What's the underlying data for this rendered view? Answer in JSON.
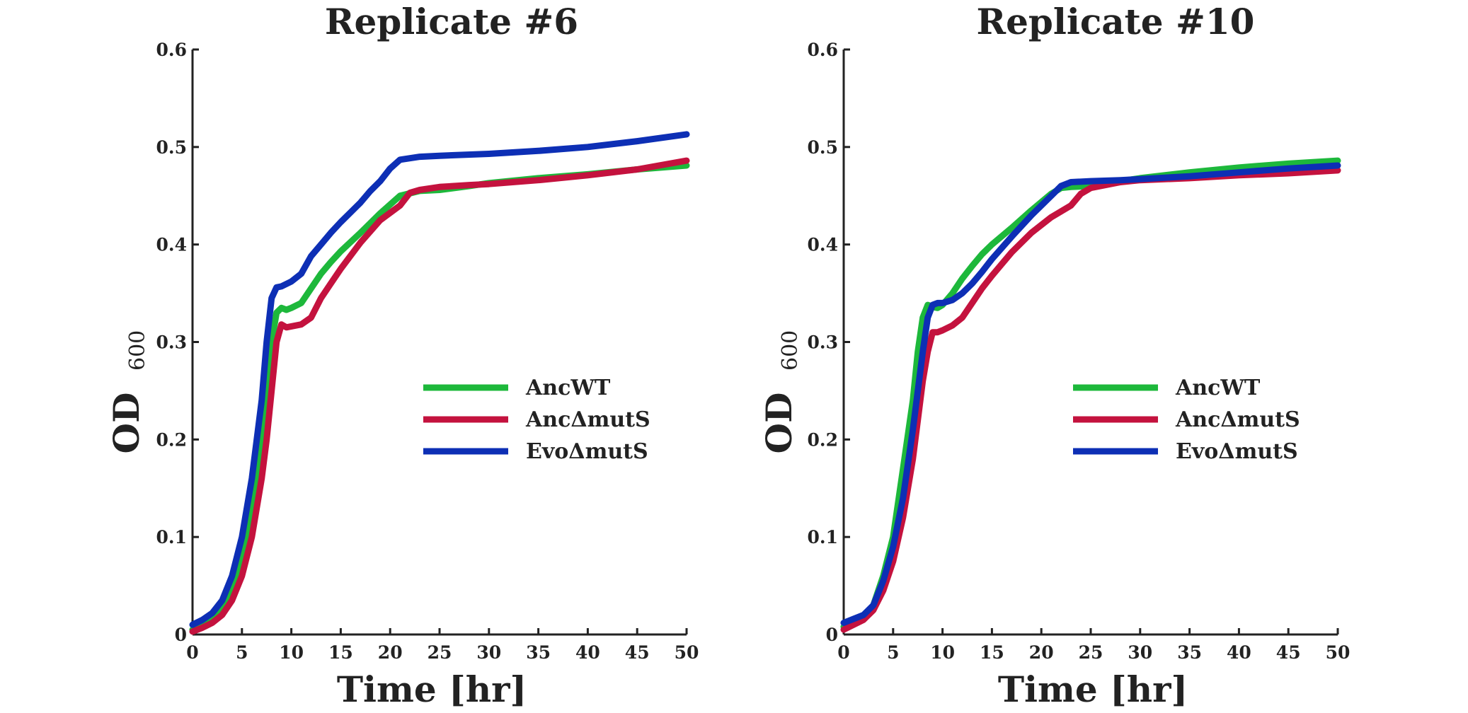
{
  "chart_data": [
    {
      "type": "line",
      "title": "Replicate #6",
      "xlabel": "Time [hr]",
      "ylabel": "OD",
      "ylabel_sub": "600",
      "xlim": [
        0,
        50
      ],
      "ylim": [
        0,
        0.6
      ],
      "xticks": [
        "0",
        "5",
        "10",
        "15",
        "20",
        "25",
        "30",
        "35",
        "40",
        "45",
        "50"
      ],
      "yticks": [
        "0",
        "0.1",
        "0.2",
        "0.3",
        "0.4",
        "0.5",
        "0.6"
      ],
      "grid": false,
      "legend_position": "right-middle",
      "series": [
        {
          "name": "AncWT",
          "color": "#1db83b",
          "x": [
            0,
            1,
            2,
            3,
            4,
            5,
            6,
            7,
            7.5,
            8,
            8.5,
            9,
            9.5,
            10,
            11,
            12,
            13,
            14,
            15,
            17,
            19,
            21,
            23,
            25,
            28,
            30,
            35,
            40,
            45,
            50
          ],
          "y": [
            0.005,
            0.01,
            0.015,
            0.025,
            0.045,
            0.08,
            0.13,
            0.2,
            0.25,
            0.3,
            0.33,
            0.335,
            0.333,
            0.335,
            0.34,
            0.355,
            0.37,
            0.382,
            0.393,
            0.412,
            0.432,
            0.45,
            0.455,
            0.456,
            0.46,
            0.463,
            0.468,
            0.472,
            0.477,
            0.481
          ]
        },
        {
          "name": "AncΔmutS",
          "color": "#c4123e",
          "x": [
            0,
            1,
            2,
            3,
            4,
            5,
            6,
            7,
            7.5,
            8,
            8.5,
            9,
            9.5,
            10,
            11,
            12,
            13,
            14,
            15,
            17,
            19,
            21,
            22,
            23,
            25,
            28,
            30,
            35,
            40,
            45,
            50
          ],
          "y": [
            0.003,
            0.007,
            0.012,
            0.02,
            0.035,
            0.06,
            0.1,
            0.16,
            0.2,
            0.25,
            0.3,
            0.318,
            0.315,
            0.316,
            0.318,
            0.325,
            0.345,
            0.36,
            0.375,
            0.402,
            0.425,
            0.44,
            0.453,
            0.456,
            0.459,
            0.461,
            0.462,
            0.466,
            0.471,
            0.477,
            0.486
          ]
        },
        {
          "name": "EvoΔmutS",
          "color": "#0d2fb5",
          "x": [
            0,
            1,
            2,
            3,
            4,
            5,
            6,
            7,
            7.5,
            8,
            8.5,
            9,
            10,
            11,
            12,
            13,
            14,
            15,
            16,
            17,
            18,
            19,
            20,
            21,
            23,
            25,
            30,
            35,
            40,
            45,
            50
          ],
          "y": [
            0.01,
            0.015,
            0.022,
            0.035,
            0.06,
            0.1,
            0.16,
            0.24,
            0.3,
            0.345,
            0.356,
            0.357,
            0.362,
            0.37,
            0.388,
            0.4,
            0.412,
            0.423,
            0.433,
            0.443,
            0.455,
            0.465,
            0.478,
            0.487,
            0.49,
            0.491,
            0.493,
            0.496,
            0.5,
            0.506,
            0.513
          ]
        }
      ],
      "legend_labels": [
        "AncWT",
        "AncΔmutS",
        "EvoΔmutS"
      ]
    },
    {
      "type": "line",
      "title": "Replicate #10",
      "xlabel": "Time [hr]",
      "ylabel": "OD",
      "ylabel_sub": "600",
      "xlim": [
        0,
        50
      ],
      "ylim": [
        0,
        0.6
      ],
      "xticks": [
        "0",
        "5",
        "10",
        "15",
        "20",
        "25",
        "30",
        "35",
        "40",
        "45",
        "50"
      ],
      "yticks": [
        "0",
        "0.1",
        "0.2",
        "0.3",
        "0.4",
        "0.5",
        "0.6"
      ],
      "grid": false,
      "legend_position": "right-middle",
      "series": [
        {
          "name": "AncWT",
          "color": "#1db83b",
          "x": [
            0,
            1,
            2,
            3,
            4,
            5,
            6,
            7,
            7.5,
            8,
            8.5,
            9,
            9.5,
            10,
            11,
            12,
            13,
            14,
            15,
            17,
            19,
            21,
            22,
            23,
            25,
            28,
            30,
            35,
            40,
            45,
            50
          ],
          "y": [
            0.008,
            0.012,
            0.018,
            0.03,
            0.06,
            0.1,
            0.17,
            0.24,
            0.29,
            0.325,
            0.338,
            0.336,
            0.335,
            0.338,
            0.35,
            0.365,
            0.378,
            0.39,
            0.4,
            0.417,
            0.435,
            0.452,
            0.458,
            0.459,
            0.46,
            0.465,
            0.468,
            0.474,
            0.479,
            0.483,
            0.486
          ]
        },
        {
          "name": "AncΔmutS",
          "color": "#c4123e",
          "x": [
            0,
            1,
            2,
            3,
            4,
            5,
            6,
            7,
            7.5,
            8,
            8.5,
            9,
            9.5,
            10,
            11,
            12,
            13,
            14,
            15,
            17,
            19,
            21,
            23,
            24,
            25,
            28,
            30,
            35,
            40,
            45,
            50
          ],
          "y": [
            0.005,
            0.01,
            0.015,
            0.025,
            0.045,
            0.075,
            0.12,
            0.18,
            0.22,
            0.26,
            0.29,
            0.31,
            0.31,
            0.312,
            0.317,
            0.325,
            0.34,
            0.355,
            0.368,
            0.392,
            0.412,
            0.428,
            0.44,
            0.452,
            0.458,
            0.464,
            0.466,
            0.468,
            0.471,
            0.473,
            0.476
          ]
        },
        {
          "name": "EvoΔmutS",
          "color": "#0d2fb5",
          "x": [
            0,
            1,
            2,
            3,
            4,
            5,
            6,
            7,
            7.5,
            8,
            8.5,
            9,
            9.5,
            10,
            11,
            12,
            13,
            14,
            15,
            17,
            19,
            21,
            22,
            23,
            25,
            28,
            30,
            35,
            40,
            45,
            50
          ],
          "y": [
            0.012,
            0.016,
            0.02,
            0.03,
            0.055,
            0.09,
            0.14,
            0.21,
            0.25,
            0.29,
            0.325,
            0.338,
            0.34,
            0.34,
            0.343,
            0.35,
            0.36,
            0.372,
            0.385,
            0.408,
            0.43,
            0.45,
            0.46,
            0.464,
            0.465,
            0.466,
            0.467,
            0.47,
            0.474,
            0.478,
            0.481
          ]
        }
      ],
      "legend_labels": [
        "AncWT",
        "AncΔmutS",
        "EvoΔmutS"
      ]
    }
  ]
}
